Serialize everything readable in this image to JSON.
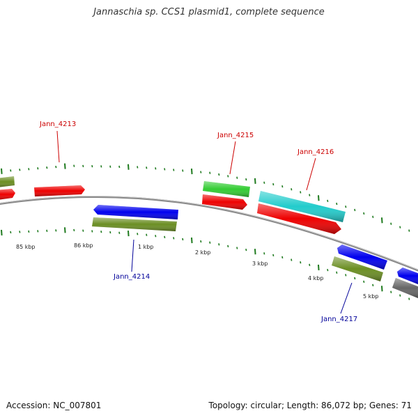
{
  "title": "Jannaschia sp. CCS1 plasmid1, complete sequence",
  "footer": {
    "accession": "Accession: NC_007801",
    "stats": "Topology: circular; Length: 86,072 bp; Genes: 71"
  },
  "colors": {
    "backbone": "#8a8a8a",
    "forward_label": "#cc0000",
    "reverse_label": "#000099",
    "tick": "#1e7a1e"
  },
  "tick_labels": [
    "85 kbp",
    "86 kbp",
    "1 kbp",
    "2 kbp",
    "3 kbp",
    "4 kbp",
    "5 kbp"
  ],
  "gene_labels": [
    {
      "name": "Jann_4213",
      "strand": "forward"
    },
    {
      "name": "Jann_4215",
      "strand": "forward"
    },
    {
      "name": "Jann_4216",
      "strand": "forward"
    },
    {
      "name": "Jann_4214",
      "strand": "reverse"
    },
    {
      "name": "Jann_4217",
      "strand": "reverse"
    }
  ],
  "features": [
    {
      "color": "#6b8e23",
      "strand": "forward"
    },
    {
      "color": "#ee0000",
      "strand": "forward"
    },
    {
      "color": "#ee0000",
      "strand": "forward"
    },
    {
      "color": "#33cc33",
      "strand": "forward"
    },
    {
      "color": "#ee0000",
      "strand": "forward"
    },
    {
      "color": "#22cccc",
      "strand": "forward"
    },
    {
      "color": "#ee0000",
      "strand": "forward"
    },
    {
      "color": "#0000ee",
      "strand": "reverse"
    },
    {
      "color": "#6b8e23",
      "strand": "reverse"
    },
    {
      "color": "#0000ee",
      "strand": "reverse"
    },
    {
      "color": "#6b8e23",
      "strand": "reverse"
    },
    {
      "color": "#0000ee",
      "strand": "reverse"
    },
    {
      "color": "#666666",
      "strand": "reverse"
    }
  ]
}
